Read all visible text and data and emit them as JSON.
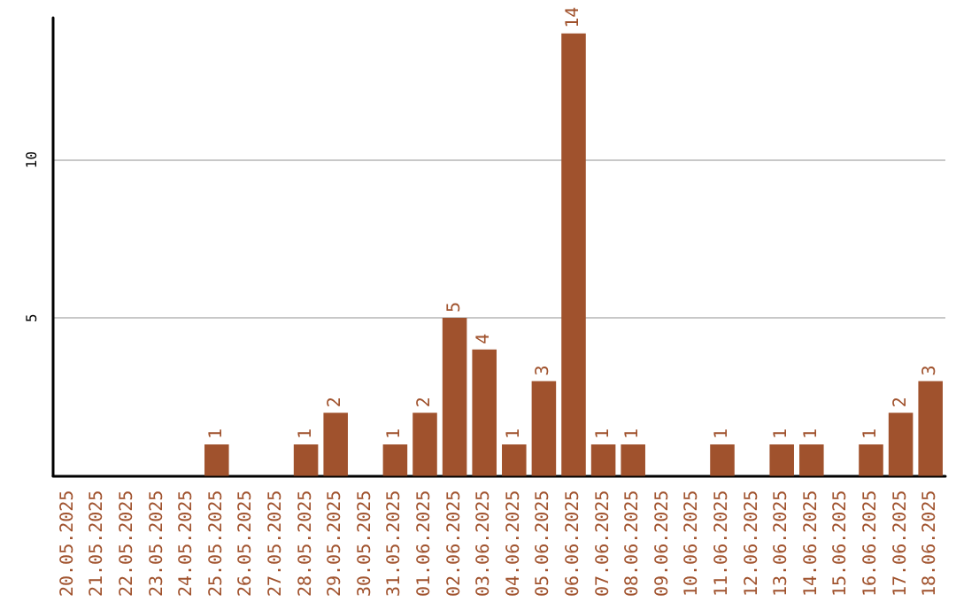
{
  "chart_data": {
    "type": "bar",
    "categories": [
      "20.05.2025",
      "21.05.2025",
      "22.05.2025",
      "23.05.2025",
      "24.05.2025",
      "25.05.2025",
      "26.05.2025",
      "27.05.2025",
      "28.05.2025",
      "29.05.2025",
      "30.05.2025",
      "31.05.2025",
      "01.06.2025",
      "02.06.2025",
      "03.06.2025",
      "04.06.2025",
      "05.06.2025",
      "06.06.2025",
      "07.06.2025",
      "08.06.2025",
      "09.06.2025",
      "10.06.2025",
      "11.06.2025",
      "12.06.2025",
      "13.06.2025",
      "14.06.2025",
      "15.06.2025",
      "16.06.2025",
      "17.06.2025",
      "18.06.2025"
    ],
    "values": [
      0,
      0,
      0,
      0,
      0,
      1,
      0,
      0,
      1,
      2,
      0,
      1,
      2,
      5,
      4,
      1,
      3,
      14,
      1,
      1,
      0,
      0,
      1,
      0,
      1,
      1,
      0,
      1,
      2,
      3
    ],
    "value_labels": [
      null,
      null,
      null,
      null,
      null,
      "1",
      null,
      null,
      "1",
      "2",
      null,
      "1",
      "2",
      "5",
      "4",
      "1",
      "3",
      "14",
      "1",
      "1",
      null,
      null,
      "1",
      null,
      "1",
      "1",
      null,
      "1",
      "2",
      "3"
    ],
    "color": "#a0522d",
    "ylim": [
      0,
      14.5
    ],
    "yticks": [
      5,
      10
    ],
    "grid": "y"
  }
}
